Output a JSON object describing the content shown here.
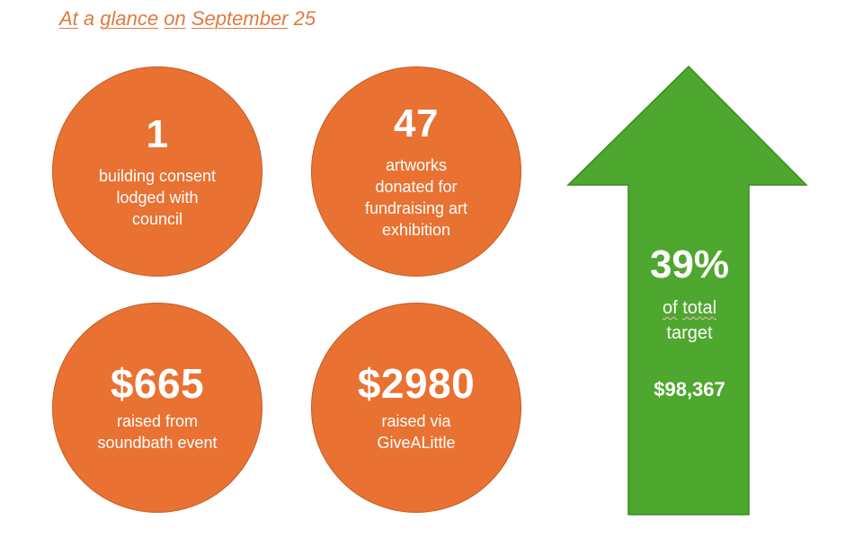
{
  "header": {
    "part1": "At",
    "part2": "a",
    "part3": "glance",
    "part4": "on",
    "part5": "September",
    "part6": "25"
  },
  "stats": [
    {
      "value": "1",
      "label": "building consent\nlodged with\ncouncil"
    },
    {
      "value": "47",
      "label": "artworks\ndonated for\nfundraising art\nexhibition"
    },
    {
      "value": "$665",
      "label": "raised from\nsoundbath event"
    },
    {
      "value": "$2980",
      "label": "raised via\nGiveALittle"
    }
  ],
  "progress": {
    "percent_text": "39%",
    "percent": 39,
    "label_word1": "of",
    "label_word2": "total",
    "label_word3": "target",
    "target_amount": "$98,367"
  },
  "colors": {
    "circle": "#e97132",
    "arrow": "#4ea72e",
    "title": "#e07a3f"
  },
  "icons": {
    "arrow": "up-arrow-icon"
  }
}
